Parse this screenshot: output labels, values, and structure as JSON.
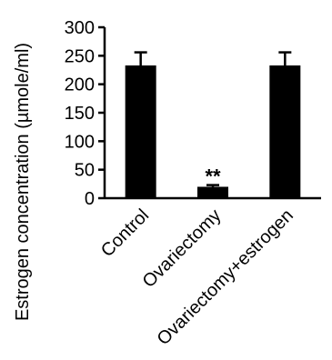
{
  "chart_data": {
    "type": "bar",
    "title": "",
    "xlabel": "",
    "ylabel": "Estrogen concentration (µmole/ml)",
    "categories": [
      "Control",
      "Ovariectomy",
      "Ovariectomy+estrogen"
    ],
    "values": [
      233,
      20,
      233
    ],
    "errors": [
      23,
      3,
      23
    ],
    "annotations": [
      "",
      "**",
      ""
    ],
    "ylim": [
      0,
      300
    ],
    "yticks": [
      0,
      50,
      100,
      150,
      200,
      250,
      300
    ],
    "grid": false,
    "legend": "none",
    "bar_color": "#000000"
  }
}
